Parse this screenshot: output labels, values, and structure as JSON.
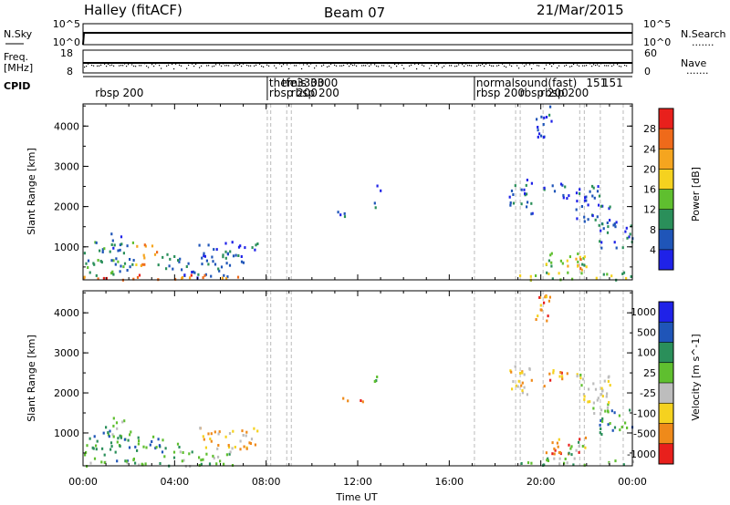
{
  "header": {
    "radar": "Halley (fitACF)",
    "beam": "Beam 07",
    "date": "21/Mar/2015"
  },
  "strips": {
    "nsky_label": "N.Sky",
    "nsearch_label": "N.Search",
    "freq_label": "Freq.",
    "freq_unit": "[MHz]",
    "nave_label": "Nave",
    "cpid_label": "CPID",
    "nsky_ticks": [
      "10^5",
      "10^0"
    ],
    "nsearch_ticks": [
      "10^5",
      "10^0"
    ],
    "freq_ticks": [
      "18",
      "8"
    ],
    "nave_ticks": [
      "60",
      "0"
    ],
    "dotted_legend": "......."
  },
  "cpid_labels": [
    {
      "text": "rbsp 200",
      "hour": 0.45,
      "row": 1
    },
    {
      "text": "themis 3300",
      "hour": 8.05,
      "row": 0
    },
    {
      "text": "rbsp 200",
      "hour": 8.05,
      "row": 1
    },
    {
      "text": "tfe3300",
      "hour": 8.6,
      "row": 0
    },
    {
      "text": "rbsp 200",
      "hour": 9.0,
      "row": 1
    },
    {
      "text": "normalsound(fast)",
      "hour": 17.1,
      "row": 0
    },
    {
      "text": "rbsp 200",
      "hour": 17.1,
      "row": 1
    },
    {
      "text": "rbsp 200",
      "hour": 19.0,
      "row": 1
    },
    {
      "text": "rbsp 200",
      "hour": 19.9,
      "row": 1
    },
    {
      "text": "151",
      "hour": 21.9,
      "row": 0
    },
    {
      "text": "151",
      "hour": 22.6,
      "row": 0
    }
  ],
  "chart_data": {
    "type": "heatmap",
    "x_axis": {
      "label": "Time UT",
      "range_hours": [
        0,
        24
      ],
      "tick_labels": [
        "00:00",
        "04:00",
        "08:00",
        "12:00",
        "16:00",
        "20:00",
        "00:00"
      ]
    },
    "y_axis": {
      "label": "Slant Range [km]",
      "range_km": [
        180,
        4550
      ],
      "tick_labels": [
        "1000",
        "2000",
        "3000",
        "4000"
      ],
      "tick_values": [
        1000,
        2000,
        3000,
        4000
      ]
    },
    "mode_change_hours": [
      8.05,
      8.2,
      8.9,
      9.1,
      17.1,
      18.9,
      19.1,
      20.1,
      21.7,
      21.9,
      22.6,
      23.6
    ],
    "power_panel": {
      "colorbar_label": "Power [dB]",
      "colorbar_range": [
        0,
        32
      ],
      "colorbar_ticks": [
        "4",
        "8",
        "12",
        "16",
        "20",
        "24",
        "28"
      ],
      "colors": [
        "#1f22e8",
        "#1f55b8",
        "#2a8f5a",
        "#5fbf2f",
        "#f5d21f",
        "#f5a51f",
        "#ef6a1a",
        "#e8201c"
      ]
    },
    "velocity_panel": {
      "colorbar_label": "Velocity [m s^-1]",
      "colorbar_ticks": [
        "1000",
        "500",
        "100",
        "25",
        "-25",
        "-100",
        "-500",
        "-1000"
      ],
      "colors": [
        "#1f22e8",
        "#1f55b8",
        "#2a8f5a",
        "#5fbf2f",
        "#bdbdbd",
        "#f5d21f",
        "#ef8a1a",
        "#e8201c"
      ]
    },
    "echo_regions": [
      {
        "t0": 0.0,
        "t1": 0.4,
        "r0": 350,
        "r1": 950,
        "power": 2,
        "vel": 2
      },
      {
        "t0": 0.4,
        "t1": 2.2,
        "r0": 300,
        "r1": 1200,
        "power": 2,
        "vel": 2
      },
      {
        "t0": 1.2,
        "t1": 1.8,
        "r0": 900,
        "r1": 1500,
        "power": 1,
        "vel": 3
      },
      {
        "t0": 2.2,
        "t1": 3.2,
        "r0": 550,
        "r1": 1100,
        "power": 5,
        "vel": 2
      },
      {
        "t0": 3.2,
        "t1": 4.2,
        "r0": 400,
        "r1": 900,
        "power": 2,
        "vel": 2
      },
      {
        "t0": 4.2,
        "t1": 6.5,
        "r0": 250,
        "r1": 650,
        "power": 1,
        "vel": 3
      },
      {
        "t0": 0.0,
        "t1": 7.0,
        "r0": 200,
        "r1": 330,
        "power": 6,
        "vel": 3
      },
      {
        "t0": 5.0,
        "t1": 7.6,
        "r0": 600,
        "r1": 1200,
        "power": 1,
        "vel": 5
      },
      {
        "t0": 11.1,
        "t1": 12.3,
        "r0": 1750,
        "r1": 1900,
        "power": 1,
        "vel": 6
      },
      {
        "t0": 12.7,
        "t1": 13.0,
        "r0": 2000,
        "r1": 2650,
        "power": 1,
        "vel": 3
      },
      {
        "t0": 18.5,
        "t1": 19.6,
        "r0": 1850,
        "r1": 2700,
        "power": 1,
        "vel": 5
      },
      {
        "t0": 19.7,
        "t1": 20.5,
        "r0": 3700,
        "r1": 4550,
        "power": 1,
        "vel": 6
      },
      {
        "t0": 20.0,
        "t1": 21.2,
        "r0": 2200,
        "r1": 2600,
        "power": 1,
        "vel": 6
      },
      {
        "t0": 20.2,
        "t1": 22.0,
        "r0": 500,
        "r1": 950,
        "power": 3,
        "vel": 6
      },
      {
        "t0": 21.0,
        "t1": 22.0,
        "r0": 450,
        "r1": 800,
        "power": 5,
        "vel": 3
      },
      {
        "t0": 21.5,
        "t1": 23.0,
        "r0": 1500,
        "r1": 2600,
        "power": 1,
        "vel": 4
      },
      {
        "t0": 22.5,
        "t1": 24.0,
        "r0": 1000,
        "r1": 1650,
        "power": 1,
        "vel": 2
      },
      {
        "t0": 19.0,
        "t1": 24.0,
        "r0": 200,
        "r1": 400,
        "power": 3,
        "vel": 3
      }
    ]
  }
}
